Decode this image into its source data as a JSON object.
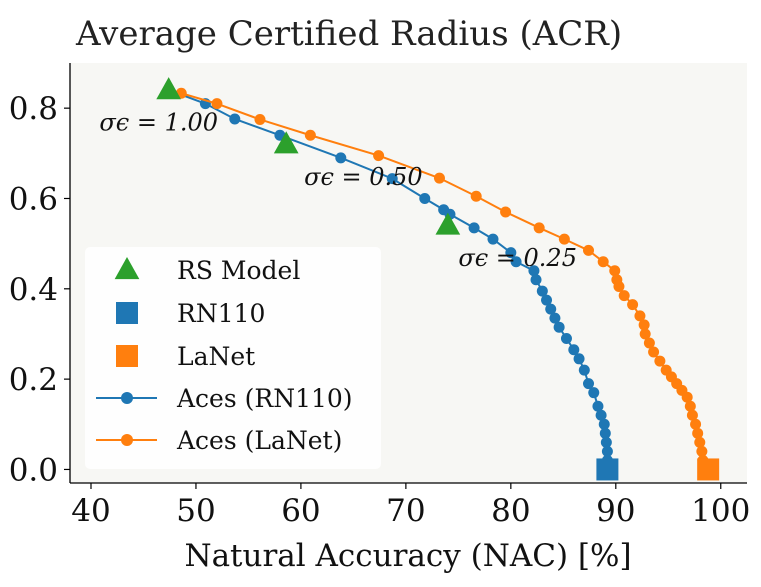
{
  "chart_data": {
    "type": "line",
    "title": "Average Certified Radius (ACR)",
    "xlabel": "Natural Accuracy (NAC) [%]",
    "ylabel": "",
    "xlim": [
      38,
      102.5
    ],
    "ylim": [
      -0.03,
      0.9
    ],
    "xticks": [
      "40",
      "50",
      "60",
      "70",
      "80",
      "90",
      "100"
    ],
    "yticks": [
      "0.0",
      "0.2",
      "0.4",
      "0.6",
      "0.8"
    ],
    "grid": false,
    "legend_position": "lower-left",
    "annotations": [
      {
        "text": "σϵ = 1.00",
        "x": 40.8,
        "y": 0.75
      },
      {
        "text": "σϵ = 0.50",
        "x": 60.3,
        "y": 0.63
      },
      {
        "text": "σϵ = 0.25",
        "x": 75.0,
        "y": 0.45
      }
    ],
    "series": [
      {
        "name": "RS Model",
        "kind": "marker",
        "marker": "triangle",
        "color": "#2ca02c",
        "x": [
          47.4,
          58.6,
          74.0
        ],
        "y": [
          0.84,
          0.72,
          0.54
        ]
      },
      {
        "name": "RN110",
        "kind": "marker",
        "marker": "square",
        "color": "#1f77b4",
        "x": [
          89.2
        ],
        "y": [
          0.0
        ]
      },
      {
        "name": "LaNet",
        "kind": "marker",
        "marker": "square",
        "color": "#ff7f0e",
        "x": [
          98.8
        ],
        "y": [
          0.0
        ]
      },
      {
        "name": "Aces (RN110)",
        "kind": "line",
        "marker": "circle",
        "color": "#1f77b4",
        "x": [
          47.4,
          50.9,
          53.7,
          58.0,
          63.8,
          68.7,
          71.8,
          73.6,
          74.2,
          76.5,
          78.3,
          80.0,
          80.5,
          82.2,
          82.4,
          83.0,
          83.4,
          83.8,
          84.2,
          84.6,
          85.3,
          86.0,
          86.5,
          87.0,
          87.4,
          87.9,
          88.3,
          88.6,
          88.9,
          89.0,
          89.1,
          89.2,
          89.2,
          89.3
        ],
        "y": [
          0.84,
          0.81,
          0.776,
          0.74,
          0.69,
          0.644,
          0.6,
          0.575,
          0.565,
          0.535,
          0.51,
          0.48,
          0.46,
          0.44,
          0.42,
          0.395,
          0.375,
          0.355,
          0.335,
          0.315,
          0.29,
          0.265,
          0.245,
          0.22,
          0.19,
          0.17,
          0.14,
          0.12,
          0.1,
          0.08,
          0.06,
          0.04,
          0.02,
          0.0
        ]
      },
      {
        "name": "Aces (LaNet)",
        "kind": "line",
        "marker": "circle",
        "color": "#ff7f0e",
        "x": [
          48.6,
          52.0,
          56.1,
          60.9,
          67.4,
          73.2,
          76.7,
          79.5,
          82.7,
          85.1,
          87.4,
          88.8,
          89.9,
          90.1,
          90.3,
          90.8,
          91.6,
          92.3,
          92.7,
          92.8,
          93.2,
          93.6,
          94.2,
          94.8,
          95.3,
          95.8,
          96.3,
          96.8,
          97.1,
          97.3,
          97.6,
          97.8,
          98.0,
          98.2,
          98.3,
          98.5,
          98.7,
          98.8
        ],
        "y": [
          0.833,
          0.81,
          0.775,
          0.74,
          0.695,
          0.645,
          0.605,
          0.57,
          0.535,
          0.51,
          0.485,
          0.46,
          0.44,
          0.42,
          0.405,
          0.385,
          0.365,
          0.34,
          0.32,
          0.3,
          0.28,
          0.26,
          0.24,
          0.22,
          0.205,
          0.19,
          0.175,
          0.16,
          0.14,
          0.12,
          0.1,
          0.08,
          0.06,
          0.04,
          0.02,
          0.01,
          0.005,
          0.0
        ]
      }
    ]
  }
}
